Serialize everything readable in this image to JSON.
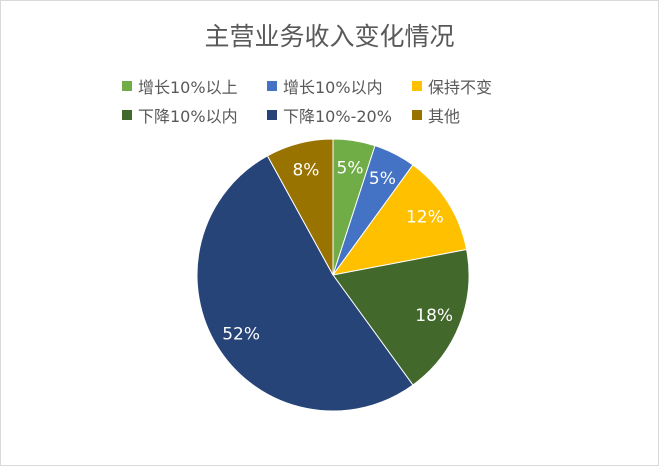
{
  "chart_data": {
    "type": "pie",
    "title": "主营业务收入变化情况",
    "legend_position": "top",
    "slices": [
      {
        "label": "增长10%以上",
        "value": 5,
        "data_label": "5%",
        "color": "#70AD47"
      },
      {
        "label": "增长10%以内",
        "value": 5,
        "data_label": "5%",
        "color": "#4472C4"
      },
      {
        "label": "保持不变",
        "value": 12,
        "data_label": "12%",
        "color": "#FFC000"
      },
      {
        "label": "下降10%以内",
        "value": 18,
        "data_label": "18%",
        "color": "#43682B"
      },
      {
        "label": "下降10%-20%",
        "value": 52,
        "data_label": "52%",
        "color": "#264478"
      },
      {
        "label": "其他",
        "value": 8,
        "data_label": "8%",
        "color": "#997300"
      }
    ]
  }
}
